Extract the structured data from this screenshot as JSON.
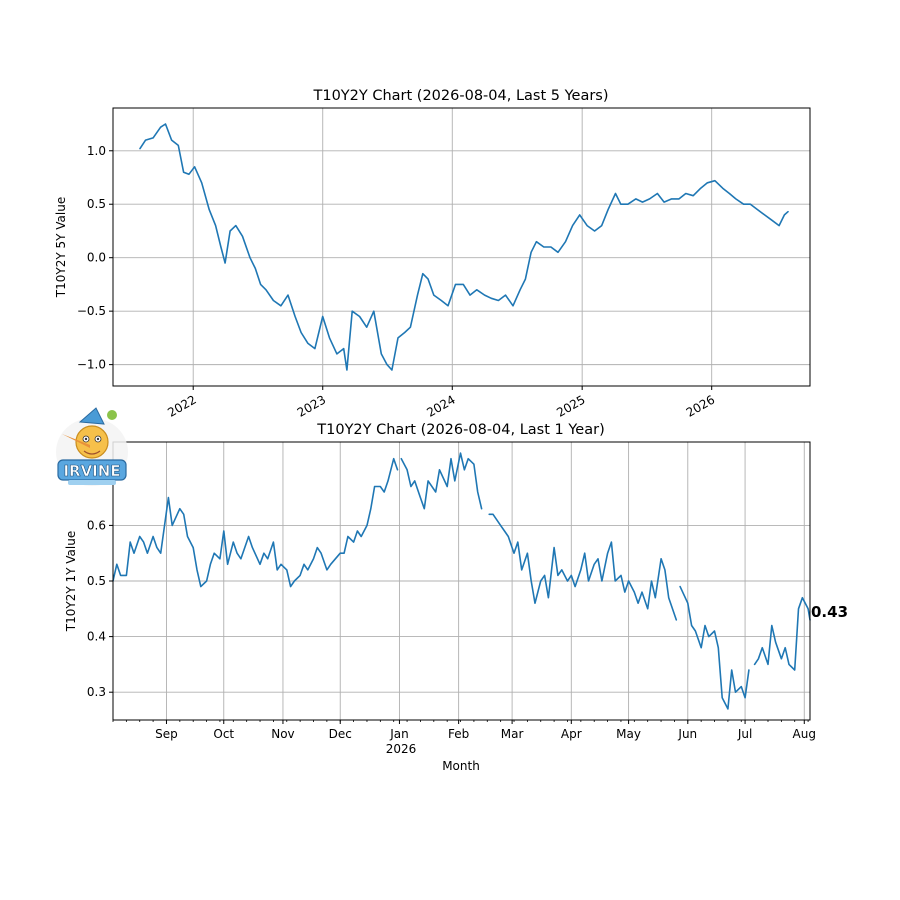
{
  "colors": {
    "series": "#1f77b4",
    "grid": "#b0b0b0"
  },
  "chart_data": [
    {
      "type": "line",
      "title": "T10Y2Y Chart (2026-08-04, Last 5 Years)",
      "xlabel": "",
      "ylabel": "T10Y2Y 5Y Value",
      "xlim": [
        "2021-05-20",
        "2026-10-05"
      ],
      "ylim": [
        -1.2,
        1.4
      ],
      "grid": true,
      "x_tick_labels": [
        "2022",
        "2023",
        "2024",
        "2025",
        "2026"
      ],
      "x_ticks": [
        "2022-01-01",
        "2023-01-01",
        "2024-01-01",
        "2025-01-01",
        "2026-01-01"
      ],
      "y_tick_labels": [
        "1.0",
        "0.5",
        "0.0",
        "−0.5",
        "−1.0"
      ],
      "y_ticks": [
        1.0,
        0.5,
        0.0,
        -0.5,
        -1.0
      ],
      "series": [
        {
          "x": [
            "2021-08-04",
            "2021-08-20",
            "2021-09-10",
            "2021-10-01",
            "2021-10-15",
            "2021-11-01",
            "2021-11-20",
            "2021-12-05",
            "2021-12-20",
            "2022-01-05",
            "2022-01-25",
            "2022-02-15",
            "2022-03-05",
            "2022-03-20",
            "2022-04-01",
            "2022-04-15",
            "2022-05-01",
            "2022-05-20",
            "2022-06-10",
            "2022-06-25",
            "2022-07-10",
            "2022-07-25",
            "2022-08-15",
            "2022-09-05",
            "2022-09-25",
            "2022-10-15",
            "2022-11-01",
            "2022-11-20",
            "2022-12-10",
            "2023-01-01",
            "2023-01-20",
            "2023-02-10",
            "2023-03-01",
            "2023-03-10",
            "2023-03-25",
            "2023-04-15",
            "2023-05-05",
            "2023-05-25",
            "2023-06-15",
            "2023-07-01",
            "2023-07-15",
            "2023-08-01",
            "2023-08-20",
            "2023-09-05",
            "2023-09-25",
            "2023-10-10",
            "2023-10-25",
            "2023-11-10",
            "2023-12-01",
            "2023-12-20",
            "2024-01-10",
            "2024-02-01",
            "2024-02-20",
            "2024-03-10",
            "2024-04-01",
            "2024-04-20",
            "2024-05-10",
            "2024-05-30",
            "2024-06-20",
            "2024-07-10",
            "2024-07-25",
            "2024-08-10",
            "2024-08-25",
            "2024-09-15",
            "2024-10-05",
            "2024-10-25",
            "2024-11-15",
            "2024-12-05",
            "2024-12-25",
            "2025-01-15",
            "2025-02-05",
            "2025-02-25",
            "2025-03-15",
            "2025-04-05",
            "2025-04-20",
            "2025-05-10",
            "2025-06-01",
            "2025-06-20",
            "2025-07-10",
            "2025-08-01",
            "2025-08-20",
            "2025-09-10",
            "2025-10-01",
            "2025-10-20",
            "2025-11-10",
            "2025-12-01",
            "2025-12-20",
            "2026-01-10",
            "2026-02-01",
            "2026-02-20",
            "2026-03-10",
            "2026-04-01",
            "2026-04-20",
            "2026-05-10",
            "2026-05-30",
            "2026-06-20",
            "2026-07-10",
            "2026-07-25",
            "2026-08-04"
          ],
          "values": [
            1.02,
            1.1,
            1.12,
            1.22,
            1.25,
            1.1,
            1.05,
            0.8,
            0.78,
            0.85,
            0.7,
            0.45,
            0.3,
            0.1,
            -0.05,
            0.25,
            0.3,
            0.2,
            0.0,
            -0.1,
            -0.25,
            -0.3,
            -0.4,
            -0.45,
            -0.35,
            -0.55,
            -0.7,
            -0.8,
            -0.85,
            -0.55,
            -0.75,
            -0.9,
            -0.85,
            -1.05,
            -0.5,
            -0.55,
            -0.65,
            -0.5,
            -0.9,
            -1.0,
            -1.05,
            -0.75,
            -0.7,
            -0.65,
            -0.35,
            -0.15,
            -0.2,
            -0.35,
            -0.4,
            -0.45,
            -0.25,
            -0.25,
            -0.35,
            -0.3,
            -0.35,
            -0.38,
            -0.4,
            -0.35,
            -0.45,
            -0.3,
            -0.2,
            0.05,
            0.15,
            0.1,
            0.1,
            0.05,
            0.15,
            0.3,
            0.4,
            0.3,
            0.25,
            0.3,
            0.45,
            0.6,
            0.5,
            0.5,
            0.55,
            0.52,
            0.55,
            0.6,
            0.52,
            0.55,
            0.55,
            0.6,
            0.58,
            0.65,
            0.7,
            0.72,
            0.65,
            0.6,
            0.55,
            0.5,
            0.5,
            0.45,
            0.4,
            0.35,
            0.3,
            0.4,
            0.43
          ]
        }
      ]
    },
    {
      "type": "line",
      "title": "T10Y2Y Chart (2026-08-04, Last 1 Year)",
      "xlabel": "Month",
      "ylabel": "T10Y2Y 1Y Value",
      "xlim": [
        "2025-08-04",
        "2026-08-04"
      ],
      "ylim": [
        0.25,
        0.75
      ],
      "grid": true,
      "x_tick_labels": [
        "Sep",
        "Oct",
        "Nov",
        "Dec",
        "Jan",
        "Feb",
        "Mar",
        "Apr",
        "May",
        "Jun",
        "Jul",
        "Aug"
      ],
      "x_ticks": [
        "2025-09-01",
        "2025-10-01",
        "2025-11-01",
        "2025-12-01",
        "2026-01-01",
        "2026-02-01",
        "2026-03-01",
        "2026-04-01",
        "2026-05-01",
        "2026-06-01",
        "2026-07-01",
        "2026-08-01"
      ],
      "x_sublabel": "2026",
      "y_tick_labels": [
        "0.6",
        "0.5",
        "0.4",
        "0.3"
      ],
      "y_ticks": [
        0.6,
        0.5,
        0.4,
        0.3
      ],
      "last_value_label": "0.43",
      "series": [
        {
          "segments": [
            {
              "x": [
                "2025-08-04",
                "2025-08-06",
                "2025-08-08",
                "2025-08-11",
                "2025-08-13",
                "2025-08-15",
                "2025-08-18",
                "2025-08-20",
                "2025-08-22",
                "2025-08-25",
                "2025-08-27",
                "2025-08-29",
                "2025-09-02",
                "2025-09-04",
                "2025-09-08",
                "2025-09-10",
                "2025-09-12",
                "2025-09-15",
                "2025-09-17",
                "2025-09-19",
                "2025-09-22",
                "2025-09-24",
                "2025-09-26",
                "2025-09-29",
                "2025-10-01",
                "2025-10-03",
                "2025-10-06",
                "2025-10-08",
                "2025-10-10",
                "2025-10-14",
                "2025-10-16",
                "2025-10-20",
                "2025-10-22",
                "2025-10-24",
                "2025-10-27",
                "2025-10-29",
                "2025-10-31",
                "2025-11-03",
                "2025-11-05",
                "2025-11-07",
                "2025-11-10",
                "2025-11-12",
                "2025-11-14",
                "2025-11-17",
                "2025-11-19",
                "2025-11-21",
                "2025-11-24",
                "2025-11-26",
                "2025-12-01",
                "2025-12-03",
                "2025-12-05",
                "2025-12-08",
                "2025-12-10",
                "2025-12-12",
                "2025-12-15",
                "2025-12-17",
                "2025-12-19",
                "2025-12-22",
                "2025-12-24",
                "2025-12-26",
                "2025-12-29",
                "2025-12-31"
              ],
              "values": [
                0.5,
                0.53,
                0.51,
                0.51,
                0.57,
                0.55,
                0.58,
                0.57,
                0.55,
                0.58,
                0.56,
                0.55,
                0.65,
                0.6,
                0.63,
                0.62,
                0.58,
                0.56,
                0.52,
                0.49,
                0.5,
                0.53,
                0.55,
                0.54,
                0.59,
                0.53,
                0.57,
                0.55,
                0.54,
                0.58,
                0.56,
                0.53,
                0.55,
                0.54,
                0.57,
                0.52,
                0.53,
                0.52,
                0.49,
                0.5,
                0.51,
                0.53,
                0.52,
                0.54,
                0.56,
                0.55,
                0.52,
                0.53,
                0.55,
                0.55,
                0.58,
                0.57,
                0.59,
                0.58,
                0.6,
                0.63,
                0.67,
                0.67,
                0.66,
                0.68,
                0.72,
                0.7
              ]
            },
            {
              "x": [
                "2026-01-02",
                "2026-01-05",
                "2026-01-07",
                "2026-01-09",
                "2026-01-12",
                "2026-01-14",
                "2026-01-16",
                "2026-01-20",
                "2026-01-22",
                "2026-01-26",
                "2026-01-28",
                "2026-01-30",
                "2026-02-02",
                "2026-02-04",
                "2026-02-06",
                "2026-02-09",
                "2026-02-11",
                "2026-02-13"
              ],
              "values": [
                0.72,
                0.7,
                0.67,
                0.68,
                0.65,
                0.63,
                0.68,
                0.66,
                0.7,
                0.67,
                0.72,
                0.68,
                0.73,
                0.7,
                0.72,
                0.71,
                0.66,
                0.63
              ]
            },
            {
              "x": [
                "2026-02-17",
                "2026-02-19",
                "2026-02-23",
                "2026-02-25",
                "2026-02-27",
                "2026-03-02",
                "2026-03-04",
                "2026-03-06",
                "2026-03-09",
                "2026-03-11",
                "2026-03-13",
                "2026-03-16",
                "2026-03-18",
                "2026-03-20",
                "2026-03-23",
                "2026-03-25",
                "2026-03-27",
                "2026-03-30",
                "2026-04-01",
                "2026-04-03",
                "2026-04-06",
                "2026-04-08",
                "2026-04-10",
                "2026-04-13",
                "2026-04-15",
                "2026-04-17",
                "2026-04-20",
                "2026-04-22",
                "2026-04-24",
                "2026-04-27",
                "2026-04-29",
                "2026-05-01",
                "2026-05-04",
                "2026-05-06",
                "2026-05-08",
                "2026-05-11",
                "2026-05-13",
                "2026-05-15",
                "2026-05-18",
                "2026-05-20",
                "2026-05-22",
                "2026-05-26"
              ],
              "values": [
                0.62,
                0.62,
                0.6,
                0.59,
                0.58,
                0.55,
                0.57,
                0.52,
                0.55,
                0.5,
                0.46,
                0.5,
                0.51,
                0.47,
                0.56,
                0.51,
                0.52,
                0.5,
                0.51,
                0.49,
                0.52,
                0.55,
                0.5,
                0.53,
                0.54,
                0.5,
                0.55,
                0.57,
                0.5,
                0.51,
                0.48,
                0.5,
                0.48,
                0.46,
                0.48,
                0.45,
                0.5,
                0.47,
                0.54,
                0.52,
                0.47,
                0.43
              ]
            },
            {
              "x": [
                "2026-05-28",
                "2026-06-01",
                "2026-06-03",
                "2026-06-05",
                "2026-06-08",
                "2026-06-10",
                "2026-06-12",
                "2026-06-15",
                "2026-06-17",
                "2026-06-19",
                "2026-06-22",
                "2026-06-24",
                "2026-06-26",
                "2026-06-29",
                "2026-07-01",
                "2026-07-03"
              ],
              "values": [
                0.49,
                0.46,
                0.42,
                0.41,
                0.38,
                0.42,
                0.4,
                0.41,
                0.38,
                0.29,
                0.27,
                0.34,
                0.3,
                0.31,
                0.29,
                0.34
              ]
            },
            {
              "x": [
                "2026-07-06",
                "2026-07-08",
                "2026-07-10",
                "2026-07-13",
                "2026-07-15",
                "2026-07-17",
                "2026-07-20",
                "2026-07-22",
                "2026-07-24",
                "2026-07-27",
                "2026-07-29",
                "2026-07-31",
                "2026-08-03",
                "2026-08-04"
              ],
              "values": [
                0.35,
                0.36,
                0.38,
                0.35,
                0.42,
                0.39,
                0.36,
                0.38,
                0.35,
                0.34,
                0.45,
                0.47,
                0.45,
                0.43
              ]
            }
          ]
        }
      ]
    }
  ]
}
